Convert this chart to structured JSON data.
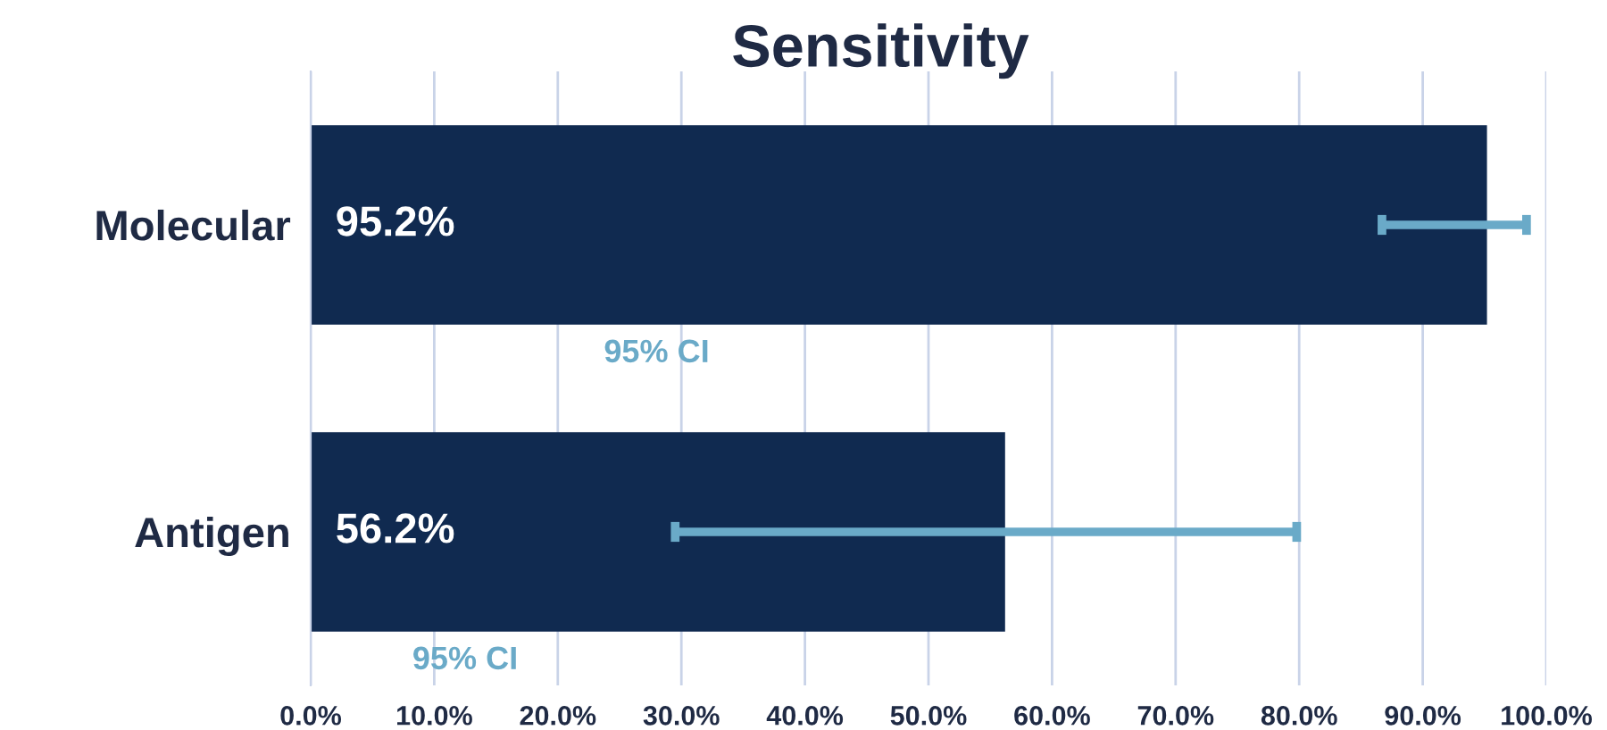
{
  "chart_data": {
    "type": "bar",
    "orientation": "horizontal",
    "title": "Sensitivity",
    "categories": [
      "Molecular",
      "Antigen"
    ],
    "values": [
      95.2,
      56.2
    ],
    "value_labels": [
      "95.2%",
      "56.2%"
    ],
    "errors": [
      [
        86.7,
        98.4
      ],
      [
        29.5,
        79.8
      ]
    ],
    "color": "#102a50",
    "xlim": [
      0,
      100
    ],
    "xticks": [
      {
        "value": 0,
        "label": "0.0%"
      },
      {
        "value": 10,
        "label": "10.0%"
      },
      {
        "value": 20,
        "label": "20.0%"
      },
      {
        "value": 30,
        "label": "30.0%"
      },
      {
        "value": 40,
        "label": "40.0%"
      },
      {
        "value": 50,
        "label": "50.0%"
      },
      {
        "value": 60,
        "label": "60.0%"
      },
      {
        "value": 70,
        "label": "70.0%"
      },
      {
        "value": 80,
        "label": "80.0%"
      },
      {
        "value": 90,
        "label": "90.0%"
      },
      {
        "value": 100,
        "label": "100.0%"
      }
    ],
    "grid": "x",
    "annotations": [
      "95% CI",
      "95% CI"
    ]
  }
}
